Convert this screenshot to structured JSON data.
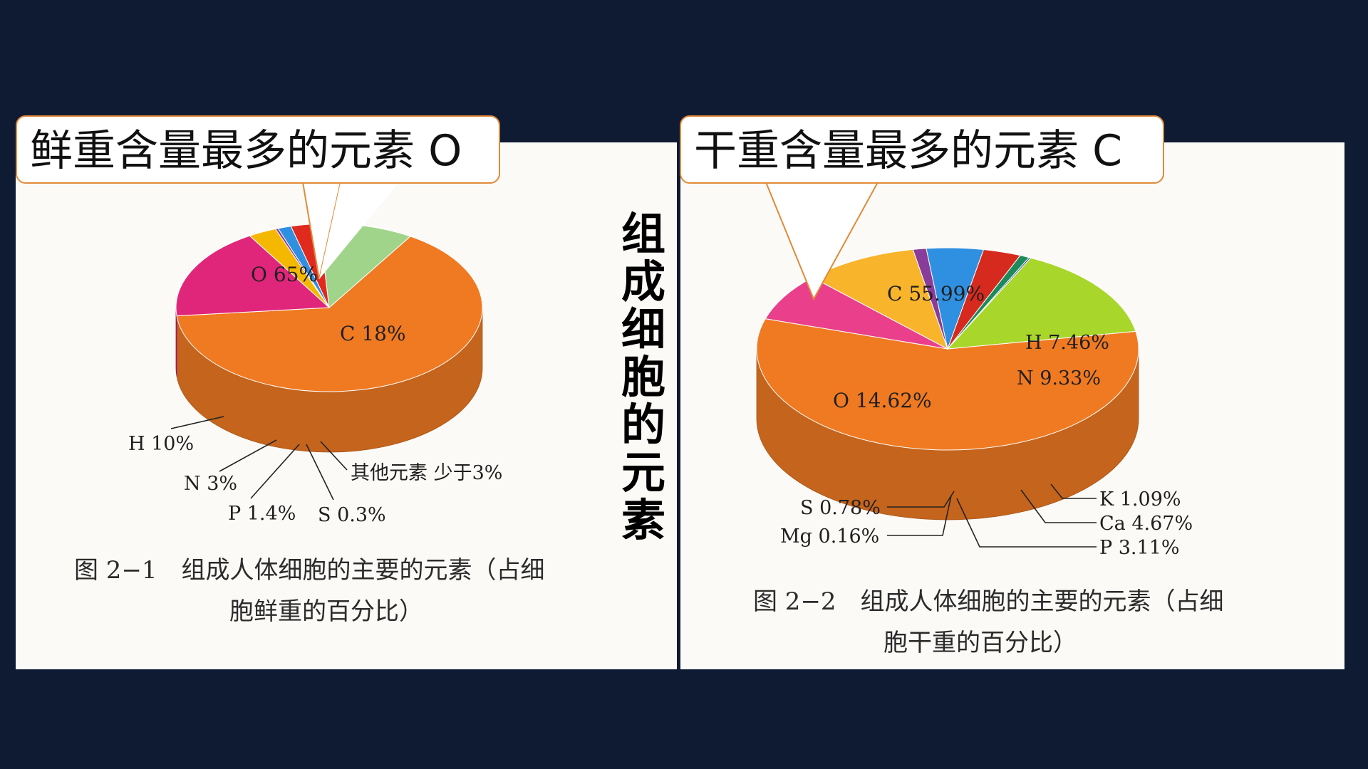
{
  "slide": {
    "vertical_title": "组成细胞的元素"
  },
  "callouts": {
    "left": "鲜重含量最多的元素 O",
    "right": "干重含量最多的元素 C"
  },
  "chart_data": [
    {
      "type": "pie",
      "title": "图 2−1　组成人体细胞的主要的元素（占细胞鲜重的百分比）",
      "caption_line1": "图 2−1　组成人体细胞的主要的元素（占细",
      "caption_line2": "胞鲜重的百分比）",
      "slices": [
        {
          "name": "O",
          "value": 65,
          "label": "O  65%",
          "color": "#f07a22"
        },
        {
          "name": "C",
          "value": 18,
          "label": "C  18%",
          "color": "#e0267a"
        },
        {
          "name": "其他元素",
          "value": 3,
          "label": "其他元素  少于3%",
          "color": "#f5b800"
        },
        {
          "name": "S",
          "value": 0.3,
          "label": "S  0.3%",
          "color": "#8a3c9a"
        },
        {
          "name": "P",
          "value": 1.4,
          "label": "P  1.4%",
          "color": "#2f8fe0"
        },
        {
          "name": "N",
          "value": 3,
          "label": "N  3%",
          "color": "#e02a1e"
        },
        {
          "name": "H",
          "value": 10,
          "label": "H  10%",
          "color": "#9fd48a"
        }
      ]
    },
    {
      "type": "pie",
      "title": "图 2−2　组成人体细胞的主要的元素（占细胞干重的百分比）",
      "caption_line1": "图 2−2　组成人体细胞的主要的元素（占细",
      "caption_line2": "胞干重的百分比）",
      "slices": [
        {
          "name": "C",
          "value": 55.99,
          "label": "C  55.99%",
          "color": "#f07a22"
        },
        {
          "name": "H",
          "value": 7.46,
          "label": "H  7.46%",
          "color": "#ea3f8a"
        },
        {
          "name": "N",
          "value": 9.33,
          "label": "N  9.33%",
          "color": "#f8b42a"
        },
        {
          "name": "K",
          "value": 1.09,
          "label": "K  1.09%",
          "color": "#8a3c9a"
        },
        {
          "name": "Ca",
          "value": 4.67,
          "label": "Ca  4.67%",
          "color": "#2f8fe0"
        },
        {
          "name": "P",
          "value": 3.11,
          "label": "P  3.11%",
          "color": "#d62a1e"
        },
        {
          "name": "S",
          "value": 0.78,
          "label": "S  0.78%",
          "color": "#1c8a5a"
        },
        {
          "name": "Mg",
          "value": 0.16,
          "label": "Mg  0.16%",
          "color": "#3a4d9a"
        },
        {
          "name": "O",
          "value": 14.62,
          "label": "O  14.62%",
          "color": "#a8d62a"
        }
      ]
    }
  ]
}
